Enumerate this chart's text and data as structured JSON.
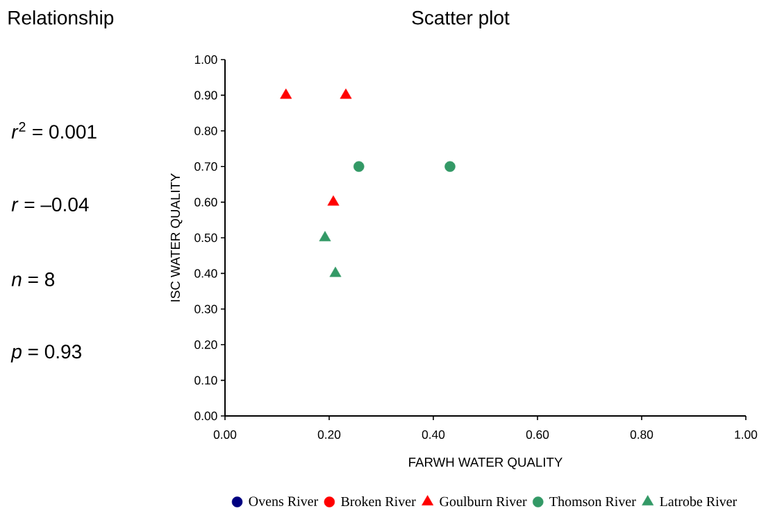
{
  "chart_data": {
    "type": "scatter",
    "title": "Scatter plot",
    "xlabel": "FARWH WATER QUALITY",
    "ylabel": "ISC WATER QUALITY",
    "annotations": [
      "Relationship",
      "*r*$^{2}$ = 0.001",
      "*r* = –0.04",
      "*n* = 8",
      "*p* = 0.93"
    ],
    "xlim": [
      0,
      1
    ],
    "ylim": [
      0,
      1
    ],
    "xticks": [
      {
        "value": 0,
        "label": "0.00"
      },
      {
        "value": 0.2,
        "label": "0.20"
      },
      {
        "value": 0.4,
        "label": "0.40"
      },
      {
        "value": 0.6,
        "label": "0.60"
      },
      {
        "value": 0.8,
        "label": "0.80"
      },
      {
        "value": 1,
        "label": "1.00"
      }
    ],
    "yticks": [
      {
        "value": 0,
        "label": "0.00"
      },
      {
        "value": 0.1,
        "label": "0.10"
      },
      {
        "value": 0.2,
        "label": "0.20"
      },
      {
        "value": 0.3,
        "label": "0.30"
      },
      {
        "value": 0.4,
        "label": "0.40"
      },
      {
        "value": 0.5,
        "label": "0.50"
      },
      {
        "value": 0.6,
        "label": "0.60"
      },
      {
        "value": 0.7,
        "label": "0.70"
      },
      {
        "value": 0.8,
        "label": "0.80"
      },
      {
        "value": 0.9,
        "label": "0.90"
      },
      {
        "value": 1,
        "label": "1.00"
      }
    ],
    "legend": "bottom",
    "grid": false,
    "series": [
      {
        "name": "Ovens River",
        "color": "#000080",
        "marker": "circle"
      },
      {
        "name": "Broken River",
        "color": "#ff0000",
        "marker": "circle"
      },
      {
        "name": "Goulburn River",
        "color": "#ff0000",
        "marker": "triangle",
        "x": [
          0.117,
          0.232,
          0.208
        ],
        "values": [
          0.9,
          0.9,
          0.6
        ]
      },
      {
        "name": "Thomson River",
        "color": "#339966",
        "marker": "circle",
        "x": [
          0.257,
          0.432
        ],
        "values": [
          0.7,
          0.7
        ]
      },
      {
        "name": "Latrobe River",
        "color": "#339966",
        "marker": "triangle",
        "x": [
          0.192,
          0.212
        ],
        "values": [
          0.5,
          0.4
        ]
      }
    ]
  }
}
